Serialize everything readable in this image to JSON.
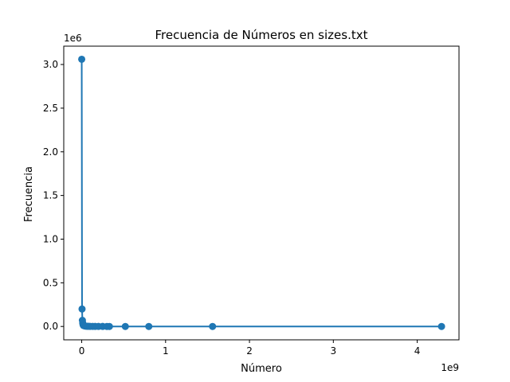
{
  "chart_data": {
    "type": "line",
    "title": "Frecuencia de Números en sizes.txt",
    "xlabel": "Número",
    "ylabel": "Frecuencia",
    "x_offset_text": "1e9",
    "y_offset_text": "1e6",
    "xlim": [
      -0.2142,
      4.4982
    ],
    "ylim": [
      -0.153,
      3.21
    ],
    "x_scale": 1000000000,
    "y_scale": 1000000,
    "x_ticks": [
      0,
      1,
      2,
      3,
      4
    ],
    "x_tick_labels": [
      "0",
      "1",
      "2",
      "3",
      "4"
    ],
    "y_ticks": [
      0.0,
      0.5,
      1.0,
      1.5,
      2.0,
      2.5,
      3.0
    ],
    "y_tick_labels": [
      "0.0",
      "0.5",
      "1.0",
      "1.5",
      "2.0",
      "2.5",
      "3.0"
    ],
    "grid": false,
    "color": "#1f77b4",
    "series": [
      {
        "x": [
          0,
          0.004,
          0.008,
          0.012,
          0.016,
          0.02,
          0.03,
          0.04,
          0.05,
          0.065,
          0.08,
          0.1,
          0.13,
          0.16,
          0.2,
          0.25,
          0.3,
          0.33,
          0.52,
          0.8,
          1.56,
          4.29
        ],
        "y": [
          3.06,
          0.2,
          0.07,
          0.04,
          0.02,
          0.012,
          0.008,
          0.005,
          0.003,
          0.002,
          0.0015,
          0.001,
          0.0008,
          0.0006,
          0.0004,
          0.0003,
          0.0002,
          0.0002,
          0.0001,
          0.0001,
          0.0001,
          0.0001
        ]
      }
    ]
  }
}
